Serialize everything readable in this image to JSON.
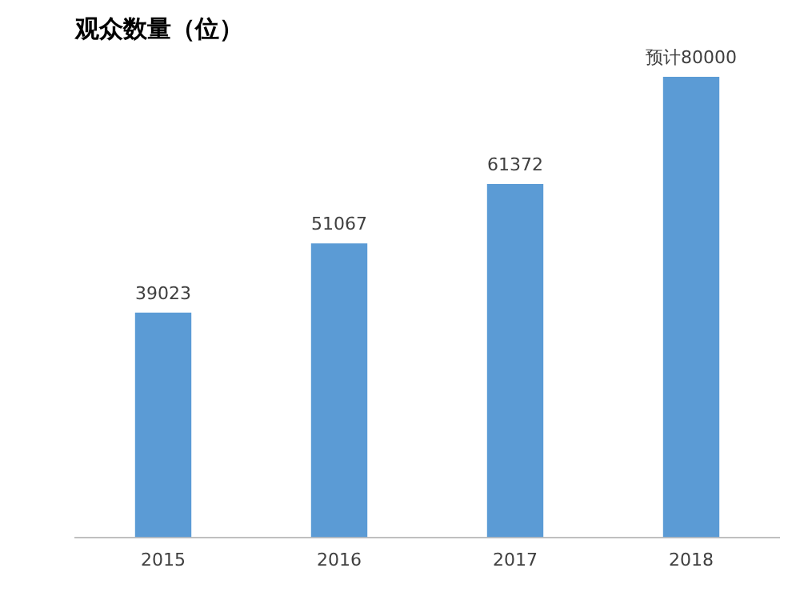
{
  "chart_data": {
    "type": "bar",
    "title": "观众数量（位）",
    "categories": [
      "2015",
      "2016",
      "2017",
      "2018"
    ],
    "values": [
      39023,
      51067,
      61372,
      80000
    ],
    "value_labels": [
      "39023",
      "51067",
      "61372",
      "预计80000"
    ],
    "color": "#5b9bd5",
    "grid": false,
    "legend": false
  }
}
